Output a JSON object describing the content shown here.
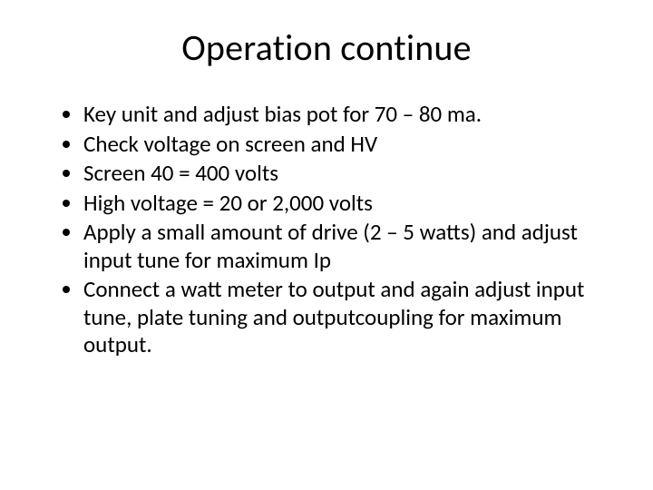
{
  "slide": {
    "background_color": "#ffffff",
    "text_color": "#000000",
    "title": "Operation continue",
    "title_fontsize": 40,
    "body_fontsize": 25,
    "bullets": [
      "Key unit and adjust bias pot for 70 – 80 ma.",
      "Check voltage on screen and HV",
      "Screen  40 =  400 volts",
      "High voltage = 20  or 2,000 volts",
      "Apply a small amount of drive (2 – 5 watts) and adjust input tune for maximum Ip",
      "Connect a watt meter to output and again adjust input tune, plate tuning and outputcoupling for maximum output."
    ]
  }
}
